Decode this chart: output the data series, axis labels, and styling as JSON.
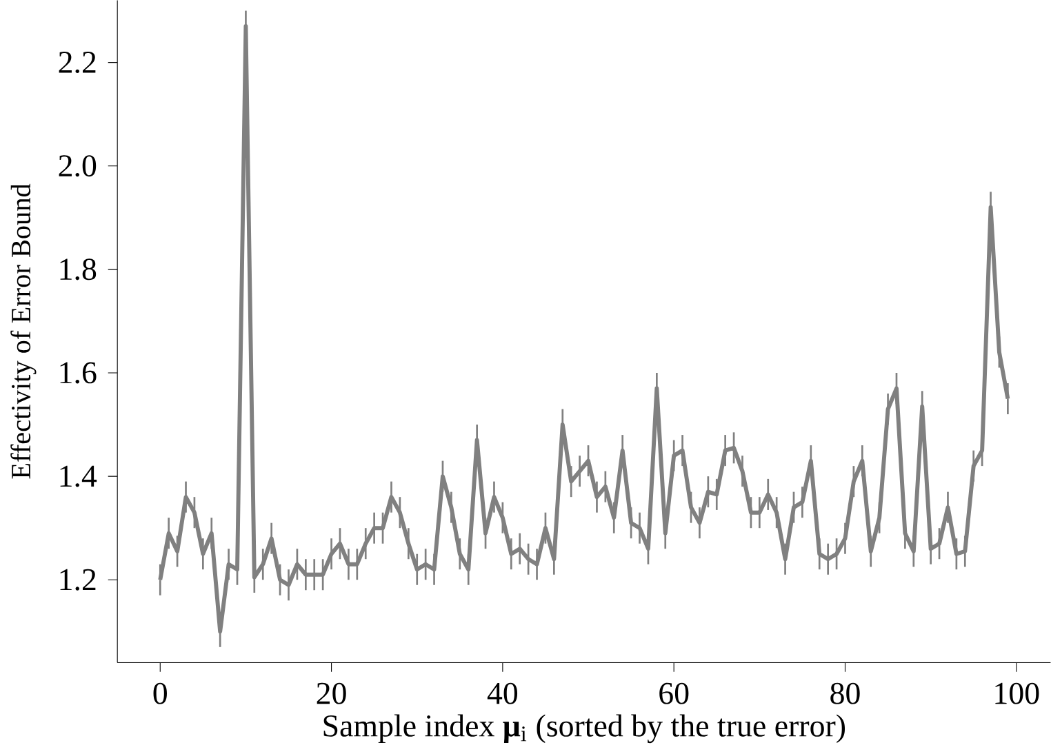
{
  "chart_data": {
    "type": "line",
    "xlabel": "Sample index **μ**$_{i}$ (sorted by the true error)",
    "ylabel": "Effectivity of Error Bound",
    "x": [
      0,
      1,
      2,
      3,
      4,
      5,
      6,
      7,
      8,
      9,
      10,
      11,
      12,
      13,
      14,
      15,
      16,
      17,
      18,
      19,
      20,
      21,
      22,
      23,
      24,
      25,
      26,
      27,
      28,
      29,
      30,
      31,
      32,
      33,
      34,
      35,
      36,
      37,
      38,
      39,
      40,
      41,
      42,
      43,
      44,
      45,
      46,
      47,
      48,
      49,
      50,
      51,
      52,
      53,
      54,
      55,
      56,
      57,
      58,
      59,
      60,
      61,
      62,
      63,
      64,
      65,
      66,
      67,
      68,
      69,
      70,
      71,
      72,
      73,
      74,
      75,
      76,
      77,
      78,
      79,
      80,
      81,
      82,
      83,
      84,
      85,
      86,
      87,
      88,
      89,
      90,
      91,
      92,
      93,
      94,
      95,
      96,
      97,
      98,
      99
    ],
    "series": [
      {
        "color": "#808080",
        "values": [
          1.2,
          1.29,
          1.255,
          1.36,
          1.33,
          1.25,
          1.29,
          1.1,
          1.23,
          1.22,
          2.27,
          1.205,
          1.23,
          1.28,
          1.2,
          1.19,
          1.23,
          1.21,
          1.21,
          1.21,
          1.25,
          1.27,
          1.23,
          1.23,
          1.27,
          1.3,
          1.3,
          1.36,
          1.33,
          1.27,
          1.22,
          1.23,
          1.22,
          1.4,
          1.34,
          1.25,
          1.22,
          1.47,
          1.29,
          1.36,
          1.32,
          1.25,
          1.26,
          1.24,
          1.23,
          1.3,
          1.24,
          1.5,
          1.39,
          1.41,
          1.43,
          1.36,
          1.38,
          1.32,
          1.45,
          1.31,
          1.3,
          1.26,
          1.57,
          1.29,
          1.44,
          1.45,
          1.34,
          1.31,
          1.37,
          1.365,
          1.45,
          1.455,
          1.41,
          1.33,
          1.33,
          1.365,
          1.33,
          1.24,
          1.34,
          1.35,
          1.43,
          1.25,
          1.24,
          1.25,
          1.28,
          1.39,
          1.43,
          1.255,
          1.32,
          1.53,
          1.57,
          1.29,
          1.255,
          1.535,
          1.26,
          1.27,
          1.34,
          1.25,
          1.255,
          1.42,
          1.45,
          1.92,
          1.64,
          1.55
        ],
        "errors": [
          0.03,
          0.03,
          0.03,
          0.03,
          0.03,
          0.03,
          0.03,
          0.03,
          0.03,
          0.03,
          0.03,
          0.03,
          0.03,
          0.03,
          0.03,
          0.03,
          0.03,
          0.03,
          0.03,
          0.03,
          0.03,
          0.03,
          0.03,
          0.03,
          0.03,
          0.03,
          0.03,
          0.03,
          0.03,
          0.03,
          0.03,
          0.03,
          0.03,
          0.03,
          0.03,
          0.03,
          0.03,
          0.03,
          0.03,
          0.03,
          0.03,
          0.03,
          0.03,
          0.03,
          0.03,
          0.03,
          0.03,
          0.03,
          0.03,
          0.03,
          0.03,
          0.03,
          0.03,
          0.03,
          0.03,
          0.03,
          0.03,
          0.03,
          0.03,
          0.03,
          0.03,
          0.03,
          0.03,
          0.03,
          0.03,
          0.03,
          0.03,
          0.03,
          0.03,
          0.03,
          0.03,
          0.03,
          0.03,
          0.03,
          0.03,
          0.03,
          0.03,
          0.03,
          0.03,
          0.03,
          0.03,
          0.03,
          0.03,
          0.03,
          0.03,
          0.03,
          0.03,
          0.03,
          0.03,
          0.03,
          0.03,
          0.03,
          0.03,
          0.03,
          0.03,
          0.03,
          0.03,
          0.03,
          0.03,
          0.03
        ]
      }
    ],
    "xlim": [
      -5,
      104
    ],
    "ylim": [
      1.04,
      2.32
    ],
    "xticks": [
      0,
      20,
      40,
      60,
      80,
      100
    ],
    "yticks": [
      1.2,
      1.4,
      1.6,
      1.8,
      {
        "value": 2.0,
        "label": "2.0"
      },
      2.2
    ],
    "grid": false,
    "marker": "none",
    "line_style": "solid"
  }
}
